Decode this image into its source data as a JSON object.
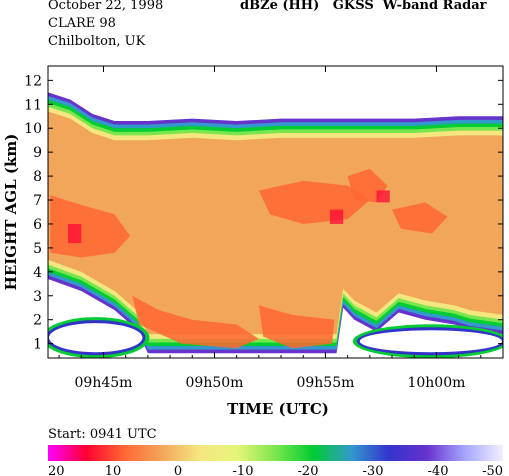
{
  "header": {
    "date": "October 22, 1998",
    "campaign": "CLARE 98",
    "location": "Chilbolton, UK",
    "title": "dBZe (HH)   GKSS  W-band Radar"
  },
  "footer": {
    "start_label": "Start: 0941 UTC"
  },
  "chart_data": {
    "type": "heatmap",
    "title": "dBZe (HH)   GKSS  W-band Radar",
    "xlabel": "TIME (UTC)",
    "ylabel": "HEIGHT AGL (km)",
    "x_ticks": [
      "09h45m",
      "09h50m",
      "09h55m",
      "10h00m"
    ],
    "x_tick_minutes": [
      45,
      50,
      55,
      60
    ],
    "xlim_minutes": [
      42.5,
      63
    ],
    "y_ticks": [
      1,
      2,
      3,
      4,
      5,
      6,
      7,
      8,
      9,
      10,
      11,
      12
    ],
    "ylim": [
      0.4,
      12.6
    ],
    "grid": false,
    "colorbar": {
      "ticks": [
        "20",
        "10",
        "0",
        "-10",
        "-20",
        "-30",
        "-40",
        "-50"
      ],
      "range_dbz": [
        20,
        -50
      ],
      "colors": [
        "#ff00ff",
        "#ff0033",
        "#ff6633",
        "#f2a65a",
        "#f5e680",
        "#e6f57a",
        "#7ae64d",
        "#00cc33",
        "#3399cc",
        "#3333cc",
        "#6633cc",
        "#a6a6ff",
        "#f0f0ff"
      ]
    },
    "cloud_top_km": [
      {
        "t": 42.5,
        "h": 11.5
      },
      {
        "t": 43.5,
        "h": 11.2
      },
      {
        "t": 44.5,
        "h": 10.6
      },
      {
        "t": 45.5,
        "h": 10.3
      },
      {
        "t": 47,
        "h": 10.3
      },
      {
        "t": 49,
        "h": 10.4
      },
      {
        "t": 51,
        "h": 10.3
      },
      {
        "t": 53,
        "h": 10.4
      },
      {
        "t": 55,
        "h": 10.4
      },
      {
        "t": 57,
        "h": 10.4
      },
      {
        "t": 59,
        "h": 10.4
      },
      {
        "t": 61,
        "h": 10.5
      },
      {
        "t": 63,
        "h": 10.5
      }
    ],
    "cloud_base_km": [
      {
        "t": 42.5,
        "h": 3.7
      },
      {
        "t": 44,
        "h": 3.2
      },
      {
        "t": 45.5,
        "h": 2.4
      },
      {
        "t": 46.5,
        "h": 1.6
      },
      {
        "t": 47,
        "h": 0.6
      },
      {
        "t": 55.5,
        "h": 0.6
      },
      {
        "t": 55.8,
        "h": 2.5
      },
      {
        "t": 56.3,
        "h": 2.0
      },
      {
        "t": 57.3,
        "h": 1.5
      },
      {
        "t": 58.3,
        "h": 2.3
      },
      {
        "t": 59.5,
        "h": 2.0
      },
      {
        "t": 60.8,
        "h": 1.8
      },
      {
        "t": 61.5,
        "h": 1.6
      },
      {
        "t": 63,
        "h": 1.4
      }
    ],
    "clear_regions": [
      {
        "name": "left-gap",
        "t": [
          42.5,
          46.8
        ],
        "h": [
          0.6,
          1.9
        ]
      },
      {
        "name": "right-gap",
        "t": [
          56.5,
          63
        ],
        "h": [
          0.6,
          1.6
        ]
      }
    ]
  }
}
